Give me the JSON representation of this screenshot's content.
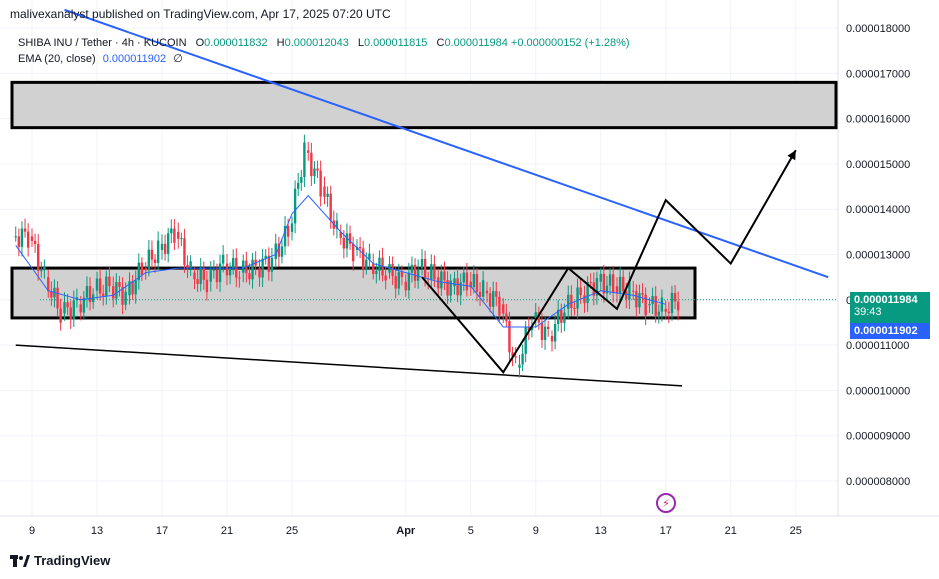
{
  "publisher": "malivexanalyst published on TradingView.com, Apr 17, 2025 07:20 UTC",
  "legend": {
    "symbol": "SHIBA INU / Tether · 4h · KUCOIN",
    "o_label": "O",
    "o": "0.000011832",
    "h_label": "H",
    "h": "0.000012043",
    "l_label": "L",
    "l": "0.000011815",
    "c_label": "C",
    "c": "0.000011984",
    "change": "+0.000000152 (+1.28%)",
    "ema_label": "EMA (20, close)",
    "ema_value": "0.000011902",
    "ema_extra": "∅"
  },
  "price_tags": {
    "last": "0.000011984",
    "timer": "39:43",
    "ema": "0.000011902"
  },
  "branding": "TradingView",
  "colors": {
    "up": "#089981",
    "down": "#f23645",
    "ema": "#2962ff",
    "trendline": "#2962ff",
    "zone_fill": "#d1d1d1",
    "drawing": "#000000"
  },
  "chart_data": {
    "type": "candlestick",
    "title": "SHIBA INU / Tether · 4h · KUCOIN",
    "x_axis": {
      "ticks": [
        "9",
        "13",
        "17",
        "21",
        "25",
        "Apr",
        "5",
        "9",
        "13",
        "17",
        "21",
        "25"
      ],
      "range": [
        "Mar 8",
        "Apr 27"
      ]
    },
    "y_axis": {
      "ticks": [
        "0.000008000",
        "0.000009000",
        "0.000010000",
        "0.000011000",
        "0.000012000",
        "0.000013000",
        "0.000014000",
        "0.000015000",
        "0.000016000",
        "0.000017000",
        "0.000018000"
      ],
      "range": [
        7.7e-06,
        1.81e-05
      ]
    },
    "series": [
      {
        "name": "price_close",
        "x": [
          "Mar 8",
          "Mar 9",
          "Mar 10",
          "Mar 11",
          "Mar 12",
          "Mar 13",
          "Mar 14",
          "Mar 15",
          "Mar 16",
          "Mar 17",
          "Mar 18",
          "Mar 19",
          "Mar 20",
          "Mar 21",
          "Mar 22",
          "Mar 23",
          "Mar 24",
          "Mar 25",
          "Mar 26",
          "Mar 27",
          "Mar 28",
          "Mar 29",
          "Mar 30",
          "Mar 31",
          "Apr 1",
          "Apr 2",
          "Apr 3",
          "Apr 4",
          "Apr 5",
          "Apr 6",
          "Apr 7",
          "Apr 8",
          "Apr 9",
          "Apr 10",
          "Apr 11",
          "Apr 12",
          "Apr 13",
          "Apr 14",
          "Apr 15",
          "Apr 16",
          "Apr 17"
        ],
        "values": [
          1.34e-05,
          1.25e-05,
          1.17e-05,
          1.19e-05,
          1.22e-05,
          1.23e-05,
          1.21e-05,
          1.27e-05,
          1.31e-05,
          1.35e-05,
          1.26e-05,
          1.24e-05,
          1.28e-05,
          1.26e-05,
          1.27e-05,
          1.29e-05,
          1.35e-05,
          1.53e-05,
          1.45e-05,
          1.35e-05,
          1.31e-05,
          1.28e-05,
          1.26e-05,
          1.24e-05,
          1.27e-05,
          1.25e-05,
          1.23e-05,
          1.24e-05,
          1.22e-05,
          1.19e-05,
          1.05e-05,
          1.16e-05,
          1.12e-05,
          1.18e-05,
          1.21e-05,
          1.24e-05,
          1.23e-05,
          1.22e-05,
          1.19e-05,
          1.18e-05,
          1.2e-05
        ]
      },
      {
        "name": "EMA (20, close)",
        "x": [
          "Mar 8",
          "Mar 10",
          "Mar 12",
          "Mar 14",
          "Mar 16",
          "Mar 18",
          "Mar 20",
          "Mar 22",
          "Mar 24",
          "Mar 25",
          "Mar 26",
          "Mar 28",
          "Mar 30",
          "Apr 1",
          "Apr 3",
          "Apr 5",
          "Apr 7",
          "Apr 9",
          "Apr 11",
          "Apr 13",
          "Apr 15",
          "Apr 17"
        ],
        "values": [
          1.32e-05,
          1.22e-05,
          1.2e-05,
          1.21e-05,
          1.26e-05,
          1.27e-05,
          1.27e-05,
          1.27e-05,
          1.3e-05,
          1.39e-05,
          1.43e-05,
          1.35e-05,
          1.28e-05,
          1.26e-05,
          1.24e-05,
          1.23e-05,
          1.14e-05,
          1.14e-05,
          1.19e-05,
          1.22e-05,
          1.21e-05,
          1.19e-05
        ]
      }
    ],
    "annotations": {
      "descending_trendline": {
        "from": [
          "Mar 11",
          1.84e-05
        ],
        "to": [
          "Apr 27",
          1.25e-05
        ]
      },
      "lower_support_line": {
        "from": [
          "Mar 8",
          1.1e-05
        ],
        "to": [
          "Apr 18",
          1.01e-05
        ]
      },
      "upper_resistance_zone": [
        1.58e-05,
        1.68e-05
      ],
      "consolidation_zone": [
        1.16e-05,
        1.27e-05
      ],
      "projected_path": [
        [
          "Apr 2",
          1.25e-05
        ],
        [
          "Apr 7",
          1.04e-05
        ],
        [
          "Apr 11",
          1.27e-05
        ],
        [
          "Apr 14",
          1.18e-05
        ],
        [
          "Apr 17",
          1.42e-05
        ],
        [
          "Apr 21",
          1.28e-05
        ],
        [
          "Apr 25",
          1.53e-05
        ]
      ]
    }
  }
}
